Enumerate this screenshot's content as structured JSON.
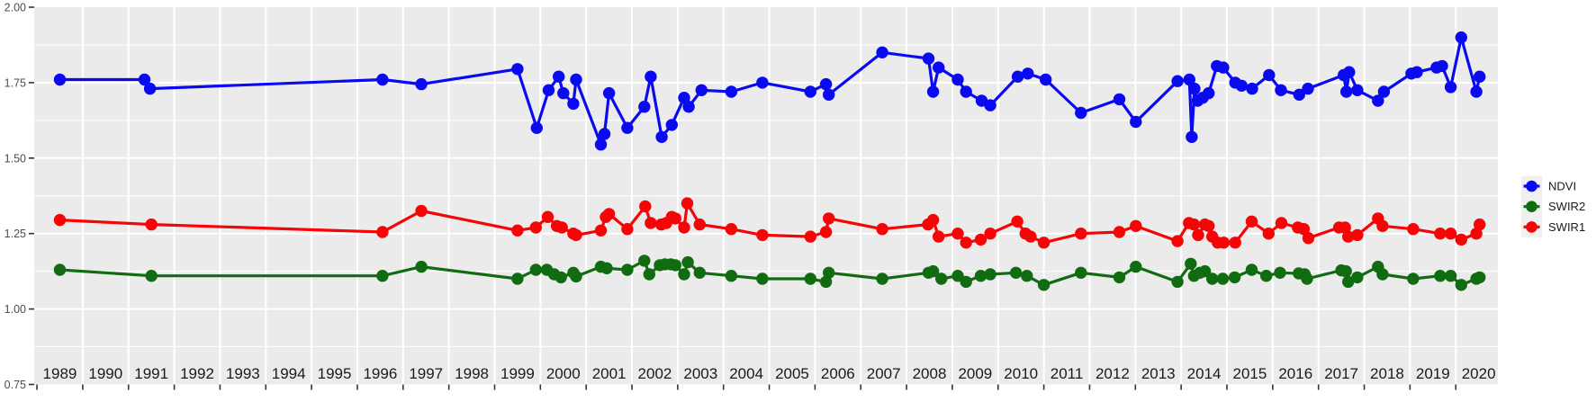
{
  "figure": {
    "background": "#FFFFFF",
    "panel_background": "#EBEBEB",
    "grid_major_color": "#FFFFFF",
    "grid_minor_color": "#FFFFFF",
    "tick_color": "#333333",
    "x_label_color": "#1A1A1A",
    "y_label_color": "#4D4D4D"
  },
  "y_axis": {
    "tick_labels": [
      "2.00",
      "1.75",
      "1.50",
      "1.25",
      "1.00",
      "0.75"
    ],
    "tick_values": [
      2.0,
      1.75,
      1.5,
      1.25,
      1.0,
      0.75
    ],
    "minor_values": [
      1.875,
      1.625,
      1.375,
      1.125,
      0.875
    ],
    "range": [
      0.75,
      2.0
    ]
  },
  "x_axis": {
    "tick_labels": [
      "1989",
      "1990",
      "1991",
      "1992",
      "1993",
      "1994",
      "1995",
      "1996",
      "1997",
      "1998",
      "1999",
      "2000",
      "2001",
      "2002",
      "2003",
      "2004",
      "2005",
      "2006",
      "2007",
      "2008",
      "2009",
      "2010",
      "2011",
      "2012",
      "2013",
      "2014",
      "2015",
      "2016",
      "2017",
      "2018",
      "2019",
      "2020"
    ],
    "boundary_ticks_years": [
      1988.5,
      1989.5,
      1990.5,
      1991.5,
      1992.5,
      1993.5,
      1994.5,
      1995.5,
      1996.5,
      1997.5,
      1998.5,
      1999.5,
      2000.5,
      2001.5,
      2002.5,
      2003.5,
      2004.5,
      2005.5,
      2006.5,
      2007.5,
      2008.5,
      2009.5,
      2010.5,
      2011.5,
      2012.5,
      2013.5,
      2014.5,
      2015.5,
      2016.5,
      2017.5,
      2018.5,
      2019.5
    ],
    "range": [
      1988.44,
      2020.42
    ]
  },
  "legend": {
    "position": "right",
    "key_fill": "#F0F0F0",
    "items": [
      {
        "label": "NDVI",
        "color": "#0A0AF2"
      },
      {
        "label": "SWIR2",
        "color": "#116C11"
      },
      {
        "label": "SWIR1",
        "color": "#F50505"
      }
    ]
  },
  "chart_data": {
    "type": "line",
    "title": "",
    "xlabel": "",
    "ylabel": "",
    "ylim": [
      0.75,
      2.0
    ],
    "xlim": [
      1988.44,
      2020.42
    ],
    "grid": "white major gridlines on gray panel; horizontal minors at 0.125 intervals; vertical majors at year boundaries",
    "legend_position": "right",
    "marker": "filled circle, r=6.7",
    "categories_note": "x values are fractional years (observation dates)",
    "series": [
      {
        "name": "NDVI",
        "color": "#0A0AF2",
        "points": [
          [
            1989.0,
            1.76
          ],
          [
            1990.85,
            1.76
          ],
          [
            1990.97,
            1.73
          ],
          [
            1996.05,
            1.76
          ],
          [
            1996.9,
            1.745
          ],
          [
            1999.0,
            1.795
          ],
          [
            1999.42,
            1.6
          ],
          [
            1999.68,
            1.725
          ],
          [
            1999.9,
            1.77
          ],
          [
            2000.0,
            1.715
          ],
          [
            2000.22,
            1.68
          ],
          [
            2000.28,
            1.76
          ],
          [
            2000.82,
            1.545
          ],
          [
            2000.9,
            1.58
          ],
          [
            2001.0,
            1.715
          ],
          [
            2001.4,
            1.6
          ],
          [
            2001.77,
            1.67
          ],
          [
            2001.91,
            1.77
          ],
          [
            2002.15,
            1.57
          ],
          [
            2002.37,
            1.61
          ],
          [
            2002.64,
            1.7
          ],
          [
            2002.74,
            1.67
          ],
          [
            2003.02,
            1.725
          ],
          [
            2003.67,
            1.72
          ],
          [
            2004.35,
            1.75
          ],
          [
            2005.4,
            1.72
          ],
          [
            2005.74,
            1.745
          ],
          [
            2005.8,
            1.71
          ],
          [
            2006.97,
            1.85
          ],
          [
            2007.98,
            1.83
          ],
          [
            2008.08,
            1.72
          ],
          [
            2008.2,
            1.8
          ],
          [
            2008.62,
            1.76
          ],
          [
            2008.8,
            1.72
          ],
          [
            2009.14,
            1.69
          ],
          [
            2009.33,
            1.675
          ],
          [
            2009.93,
            1.77
          ],
          [
            2010.15,
            1.78
          ],
          [
            2010.54,
            1.76
          ],
          [
            2011.31,
            1.65
          ],
          [
            2012.15,
            1.695
          ],
          [
            2012.51,
            1.62
          ],
          [
            2013.42,
            1.755
          ],
          [
            2013.68,
            1.76
          ],
          [
            2013.73,
            1.57
          ],
          [
            2013.79,
            1.73
          ],
          [
            2013.86,
            1.69
          ],
          [
            2013.97,
            1.7
          ],
          [
            2014.1,
            1.715
          ],
          [
            2014.28,
            1.805
          ],
          [
            2014.42,
            1.8
          ],
          [
            2014.68,
            1.75
          ],
          [
            2014.82,
            1.74
          ],
          [
            2015.05,
            1.73
          ],
          [
            2015.42,
            1.775
          ],
          [
            2015.68,
            1.725
          ],
          [
            2016.08,
            1.71
          ],
          [
            2016.27,
            1.73
          ],
          [
            2017.05,
            1.775
          ],
          [
            2017.11,
            1.72
          ],
          [
            2017.17,
            1.785
          ],
          [
            2017.35,
            1.725
          ],
          [
            2017.8,
            1.69
          ],
          [
            2017.93,
            1.72
          ],
          [
            2018.53,
            1.78
          ],
          [
            2018.65,
            1.785
          ],
          [
            2019.08,
            1.8
          ],
          [
            2019.2,
            1.805
          ],
          [
            2019.39,
            1.735
          ],
          [
            2019.62,
            1.9
          ],
          [
            2019.95,
            1.72
          ],
          [
            2020.02,
            1.77
          ]
        ]
      },
      {
        "name": "SWIR2",
        "color": "#116C11",
        "points": [
          [
            1989.0,
            1.13
          ],
          [
            1991.0,
            1.11
          ],
          [
            1996.05,
            1.11
          ],
          [
            1996.9,
            1.14
          ],
          [
            1999.0,
            1.1
          ],
          [
            1999.4,
            1.13
          ],
          [
            1999.64,
            1.13
          ],
          [
            1999.8,
            1.115
          ],
          [
            1999.95,
            1.105
          ],
          [
            2000.22,
            1.12
          ],
          [
            2000.28,
            1.108
          ],
          [
            2000.82,
            1.14
          ],
          [
            2000.95,
            1.135
          ],
          [
            2001.4,
            1.13
          ],
          [
            2001.77,
            1.16
          ],
          [
            2001.88,
            1.115
          ],
          [
            2002.11,
            1.145
          ],
          [
            2002.22,
            1.148
          ],
          [
            2002.35,
            1.148
          ],
          [
            2002.45,
            1.145
          ],
          [
            2002.64,
            1.115
          ],
          [
            2002.72,
            1.155
          ],
          [
            2002.98,
            1.12
          ],
          [
            2003.67,
            1.11
          ],
          [
            2004.35,
            1.1
          ],
          [
            2005.4,
            1.1
          ],
          [
            2005.74,
            1.09
          ],
          [
            2005.8,
            1.12
          ],
          [
            2006.97,
            1.1
          ],
          [
            2007.98,
            1.12
          ],
          [
            2008.08,
            1.125
          ],
          [
            2008.26,
            1.1
          ],
          [
            2008.62,
            1.11
          ],
          [
            2008.8,
            1.09
          ],
          [
            2009.12,
            1.11
          ],
          [
            2009.33,
            1.115
          ],
          [
            2009.89,
            1.12
          ],
          [
            2010.13,
            1.11
          ],
          [
            2010.5,
            1.08
          ],
          [
            2011.31,
            1.12
          ],
          [
            2012.15,
            1.105
          ],
          [
            2012.51,
            1.14
          ],
          [
            2013.42,
            1.09
          ],
          [
            2013.71,
            1.15
          ],
          [
            2013.78,
            1.11
          ],
          [
            2013.91,
            1.12
          ],
          [
            2014.02,
            1.125
          ],
          [
            2014.18,
            1.1
          ],
          [
            2014.41,
            1.1
          ],
          [
            2014.67,
            1.105
          ],
          [
            2015.04,
            1.13
          ],
          [
            2015.36,
            1.11
          ],
          [
            2015.66,
            1.12
          ],
          [
            2016.07,
            1.118
          ],
          [
            2016.2,
            1.115
          ],
          [
            2016.25,
            1.1
          ],
          [
            2017.0,
            1.128
          ],
          [
            2017.1,
            1.125
          ],
          [
            2017.15,
            1.09
          ],
          [
            2017.35,
            1.105
          ],
          [
            2017.8,
            1.14
          ],
          [
            2017.9,
            1.115
          ],
          [
            2018.57,
            1.1
          ],
          [
            2019.16,
            1.11
          ],
          [
            2019.39,
            1.11
          ],
          [
            2019.62,
            1.08
          ],
          [
            2019.95,
            1.1
          ],
          [
            2020.02,
            1.105
          ]
        ]
      },
      {
        "name": "SWIR1",
        "color": "#F50505",
        "points": [
          [
            1989.0,
            1.295
          ],
          [
            1991.0,
            1.28
          ],
          [
            1996.05,
            1.255
          ],
          [
            1996.9,
            1.325
          ],
          [
            1999.0,
            1.26
          ],
          [
            1999.4,
            1.27
          ],
          [
            1999.66,
            1.305
          ],
          [
            1999.86,
            1.275
          ],
          [
            1999.97,
            1.27
          ],
          [
            2000.22,
            1.25
          ],
          [
            2000.28,
            1.245
          ],
          [
            2000.82,
            1.26
          ],
          [
            2000.93,
            1.305
          ],
          [
            2001.0,
            1.315
          ],
          [
            2001.4,
            1.265
          ],
          [
            2001.79,
            1.34
          ],
          [
            2001.91,
            1.285
          ],
          [
            2002.14,
            1.28
          ],
          [
            2002.25,
            1.285
          ],
          [
            2002.37,
            1.305
          ],
          [
            2002.45,
            1.3
          ],
          [
            2002.64,
            1.27
          ],
          [
            2002.71,
            1.35
          ],
          [
            2002.98,
            1.28
          ],
          [
            2003.67,
            1.265
          ],
          [
            2004.35,
            1.245
          ],
          [
            2005.4,
            1.24
          ],
          [
            2005.74,
            1.255
          ],
          [
            2005.8,
            1.3
          ],
          [
            2006.97,
            1.265
          ],
          [
            2007.97,
            1.28
          ],
          [
            2008.08,
            1.295
          ],
          [
            2008.2,
            1.24
          ],
          [
            2008.62,
            1.25
          ],
          [
            2008.8,
            1.22
          ],
          [
            2009.12,
            1.23
          ],
          [
            2009.33,
            1.25
          ],
          [
            2009.92,
            1.29
          ],
          [
            2010.1,
            1.25
          ],
          [
            2010.21,
            1.24
          ],
          [
            2010.5,
            1.22
          ],
          [
            2011.31,
            1.25
          ],
          [
            2012.15,
            1.255
          ],
          [
            2012.51,
            1.275
          ],
          [
            2013.42,
            1.225
          ],
          [
            2013.67,
            1.285
          ],
          [
            2013.78,
            1.28
          ],
          [
            2013.87,
            1.245
          ],
          [
            2014.02,
            1.28
          ],
          [
            2014.1,
            1.275
          ],
          [
            2014.18,
            1.24
          ],
          [
            2014.3,
            1.22
          ],
          [
            2014.43,
            1.22
          ],
          [
            2014.68,
            1.22
          ],
          [
            2015.04,
            1.29
          ],
          [
            2015.41,
            1.25
          ],
          [
            2015.69,
            1.285
          ],
          [
            2016.05,
            1.27
          ],
          [
            2016.18,
            1.265
          ],
          [
            2016.28,
            1.235
          ],
          [
            2016.95,
            1.27
          ],
          [
            2017.08,
            1.27
          ],
          [
            2017.15,
            1.24
          ],
          [
            2017.35,
            1.245
          ],
          [
            2017.8,
            1.3
          ],
          [
            2017.9,
            1.275
          ],
          [
            2018.57,
            1.265
          ],
          [
            2019.16,
            1.25
          ],
          [
            2019.39,
            1.25
          ],
          [
            2019.62,
            1.23
          ],
          [
            2019.95,
            1.25
          ],
          [
            2020.02,
            1.28
          ]
        ]
      }
    ]
  }
}
